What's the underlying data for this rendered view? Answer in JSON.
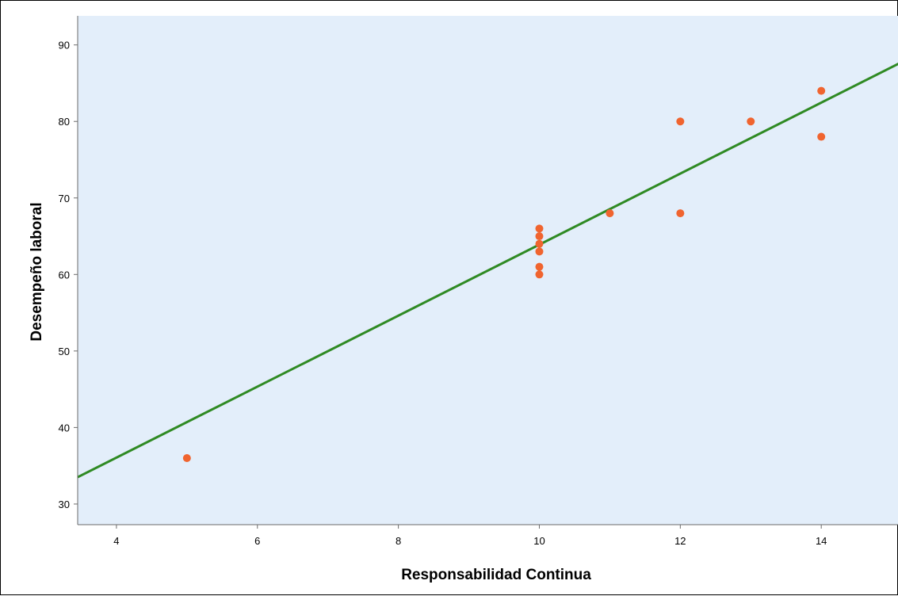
{
  "colors": {
    "plot_background": "#e3eefa",
    "point": "#f0642f",
    "fit_line": "#2f8a23",
    "axis": "#6b6b6b"
  },
  "chart_data": {
    "type": "scatter",
    "title": "",
    "xlabel": "Responsabilidad Continua",
    "ylabel": "Desempeño laboral",
    "xlim": [
      3.45,
      15.1
    ],
    "ylim": [
      27.3,
      93.8
    ],
    "xticks": [
      4,
      6,
      8,
      10,
      12,
      14
    ],
    "yticks": [
      30,
      40,
      50,
      60,
      70,
      80,
      90
    ],
    "grid": false,
    "points": [
      {
        "x": 5,
        "y": 36
      },
      {
        "x": 10,
        "y": 60
      },
      {
        "x": 10,
        "y": 61
      },
      {
        "x": 10,
        "y": 63
      },
      {
        "x": 10,
        "y": 64
      },
      {
        "x": 10,
        "y": 65
      },
      {
        "x": 10,
        "y": 66
      },
      {
        "x": 11,
        "y": 68
      },
      {
        "x": 12,
        "y": 68
      },
      {
        "x": 12,
        "y": 80
      },
      {
        "x": 13,
        "y": 80
      },
      {
        "x": 14,
        "y": 78
      },
      {
        "x": 14,
        "y": 84
      }
    ],
    "fit_line": {
      "type": "linear",
      "slope": 4.64,
      "intercept": 17.5
    }
  }
}
